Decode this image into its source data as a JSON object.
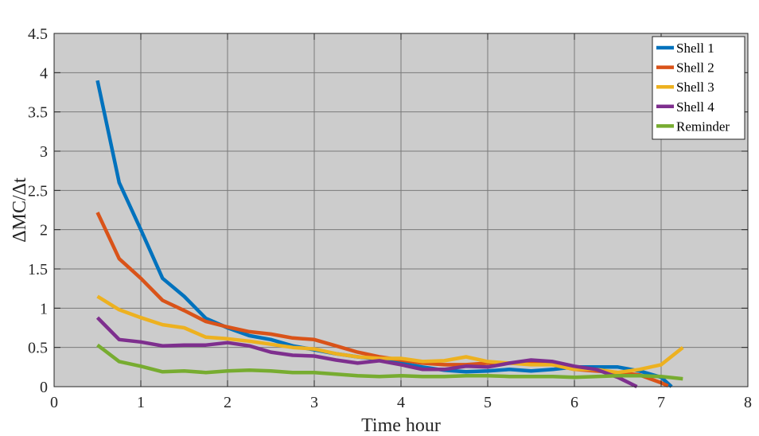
{
  "chart_data": {
    "type": "line",
    "title": "",
    "xlabel": "Time hour",
    "ylabel": "ΔMC/Δt",
    "xlim": [
      0,
      8
    ],
    "ylim": [
      0,
      4.5
    ],
    "xticks": [
      "0",
      "1",
      "2",
      "3",
      "4",
      "5",
      "6",
      "7",
      "8"
    ],
    "yticks": [
      "0",
      "0.5",
      "1",
      "1.5",
      "2",
      "2.5",
      "3",
      "3.5",
      "4",
      "4.5"
    ],
    "grid": true,
    "background": "#cccccc",
    "legend_position": "top-right",
    "series": [
      {
        "name": "Shell 1",
        "color": "#0072bd",
        "x": [
          0.5,
          0.75,
          1.0,
          1.25,
          1.5,
          1.75,
          2.0,
          2.25,
          2.5,
          2.75,
          3.0,
          3.25,
          3.5,
          3.75,
          4.0,
          4.25,
          4.5,
          4.75,
          5.0,
          5.25,
          5.5,
          5.75,
          6.0,
          6.25,
          6.5,
          6.75,
          7.0,
          7.12
        ],
        "y": [
          3.9,
          2.6,
          2.0,
          1.38,
          1.15,
          0.87,
          0.75,
          0.65,
          0.6,
          0.52,
          0.47,
          0.42,
          0.38,
          0.35,
          0.3,
          0.25,
          0.21,
          0.19,
          0.2,
          0.22,
          0.2,
          0.22,
          0.25,
          0.25,
          0.25,
          0.2,
          0.12,
          0.0
        ]
      },
      {
        "name": "Shell 2",
        "color": "#d95319",
        "x": [
          0.5,
          0.75,
          1.0,
          1.25,
          1.5,
          1.75,
          2.0,
          2.25,
          2.5,
          2.75,
          3.0,
          3.25,
          3.5,
          3.75,
          4.0,
          4.25,
          4.5,
          4.75,
          5.0,
          5.25,
          5.5,
          5.75,
          6.0,
          6.25,
          6.5,
          6.75,
          7.0,
          7.08
        ],
        "y": [
          2.22,
          1.63,
          1.38,
          1.1,
          0.97,
          0.83,
          0.76,
          0.7,
          0.67,
          0.62,
          0.6,
          0.52,
          0.44,
          0.38,
          0.34,
          0.3,
          0.28,
          0.28,
          0.3,
          0.3,
          0.3,
          0.28,
          0.22,
          0.2,
          0.18,
          0.15,
          0.05,
          0.01
        ]
      },
      {
        "name": "Shell 3",
        "color": "#edb120",
        "x": [
          0.5,
          0.75,
          1.0,
          1.25,
          1.5,
          1.75,
          2.0,
          2.25,
          2.5,
          2.75,
          3.0,
          3.25,
          3.5,
          3.75,
          4.0,
          4.25,
          4.5,
          4.75,
          5.0,
          5.25,
          5.5,
          5.75,
          6.0,
          6.25,
          6.5,
          6.75,
          7.0,
          7.25
        ],
        "y": [
          1.15,
          0.98,
          0.88,
          0.79,
          0.75,
          0.63,
          0.61,
          0.58,
          0.54,
          0.5,
          0.48,
          0.42,
          0.38,
          0.36,
          0.36,
          0.32,
          0.33,
          0.38,
          0.32,
          0.3,
          0.28,
          0.28,
          0.22,
          0.22,
          0.18,
          0.22,
          0.28,
          0.5
        ]
      },
      {
        "name": "Shell 4",
        "color": "#7e2f8e",
        "x": [
          0.5,
          0.75,
          1.0,
          1.25,
          1.5,
          1.75,
          2.0,
          2.25,
          2.5,
          2.75,
          3.0,
          3.25,
          3.5,
          3.75,
          4.0,
          4.25,
          4.5,
          4.75,
          5.0,
          5.25,
          5.5,
          5.75,
          6.0,
          6.25,
          6.5,
          6.72
        ],
        "y": [
          0.88,
          0.6,
          0.57,
          0.52,
          0.53,
          0.53,
          0.56,
          0.52,
          0.44,
          0.4,
          0.39,
          0.34,
          0.3,
          0.33,
          0.28,
          0.22,
          0.22,
          0.26,
          0.25,
          0.3,
          0.34,
          0.32,
          0.26,
          0.22,
          0.12,
          0.0
        ]
      },
      {
        "name": "Reminder",
        "color": "#77ac30",
        "x": [
          0.5,
          0.75,
          1.0,
          1.25,
          1.5,
          1.75,
          2.0,
          2.25,
          2.5,
          2.75,
          3.0,
          3.25,
          3.5,
          3.75,
          4.0,
          4.25,
          4.5,
          4.75,
          5.0,
          5.25,
          5.5,
          5.75,
          6.0,
          6.25,
          6.5,
          6.75,
          7.0,
          7.25
        ],
        "y": [
          0.53,
          0.32,
          0.26,
          0.19,
          0.2,
          0.18,
          0.2,
          0.21,
          0.2,
          0.18,
          0.18,
          0.16,
          0.14,
          0.13,
          0.14,
          0.13,
          0.13,
          0.14,
          0.14,
          0.13,
          0.13,
          0.13,
          0.12,
          0.13,
          0.14,
          0.14,
          0.13,
          0.1
        ]
      }
    ]
  }
}
